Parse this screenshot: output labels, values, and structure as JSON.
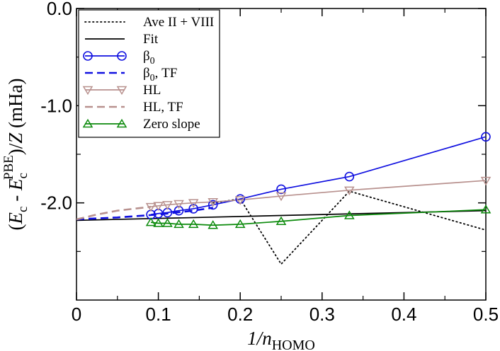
{
  "chart_data": {
    "type": "line",
    "title": "",
    "xlabel": {
      "prefix": "1/",
      "var": "n",
      "sub": "HOMO"
    },
    "ylabel": {
      "open": "(",
      "e1": "E",
      "e1_sub": "c",
      "minus": " - ",
      "e2": "E",
      "e2_sub": "c",
      "e2_sup": "PBE",
      "close": ")/",
      "z": "Z",
      "unit": " (mHa)"
    },
    "xlim": [
      0,
      0.5
    ],
    "ylim": [
      -3.0,
      0.0
    ],
    "x_ticks": [
      0,
      0.1,
      0.2,
      0.3,
      0.4,
      0.5
    ],
    "x_tick_labels": [
      "0",
      "0.1",
      "0.2",
      "0.3",
      "0.4",
      "0.5"
    ],
    "y_ticks": [
      0.0,
      -1.0,
      -2.0
    ],
    "y_tick_labels": [
      "0.0",
      "-1.0",
      "-2.0"
    ],
    "grid": false,
    "legend_position": "top-left",
    "series": [
      {
        "name": "Ave II + VIII",
        "color": "#000000",
        "dash": "dotted",
        "marker": "none",
        "x": [
          0.1667,
          0.2,
          0.25,
          0.3333,
          0.5
        ],
        "y": [
          -2.0,
          -1.96,
          -2.63,
          -1.88,
          -2.28
        ]
      },
      {
        "name": "Fit",
        "color": "#000000",
        "dash": "solid",
        "marker": "none",
        "x": [
          0,
          0.5
        ],
        "y": [
          -2.18,
          -2.08
        ]
      },
      {
        "name": "β0",
        "label_main": "β",
        "label_sub": "0",
        "label_tail": "",
        "color": "#1010e0",
        "dash": "solid",
        "marker": "circle",
        "x": [
          0.0909,
          0.1,
          0.1111,
          0.125,
          0.1429,
          0.1667,
          0.2,
          0.25,
          0.3333,
          0.5
        ],
        "y": [
          -2.12,
          -2.11,
          -2.1,
          -2.08,
          -2.06,
          -2.02,
          -1.96,
          -1.86,
          -1.73,
          -1.32
        ]
      },
      {
        "name": "β0, TF",
        "label_main": "β",
        "label_sub": "0",
        "label_tail": ", TF",
        "color": "#1010e0",
        "dash": "dashed",
        "marker": "none",
        "x": [
          0,
          0.05,
          0.1,
          0.1429,
          0.1667
        ],
        "y": [
          -2.17,
          -2.15,
          -2.12,
          -2.08,
          -2.05
        ]
      },
      {
        "name": "HL",
        "color": "#b8918e",
        "dash": "solid",
        "marker": "triangle-down",
        "x": [
          0.0909,
          0.1,
          0.1111,
          0.125,
          0.1429,
          0.1667,
          0.2,
          0.25,
          0.3333,
          0.5
        ],
        "y": [
          -2.04,
          -2.03,
          -2.02,
          -2.01,
          -2.0,
          -1.99,
          -1.97,
          -1.93,
          -1.87,
          -1.77
        ]
      },
      {
        "name": "HL, TF",
        "color": "#b8918e",
        "dash": "dashed",
        "marker": "none",
        "x": [
          0,
          0.025,
          0.05,
          0.0909
        ],
        "y": [
          -2.17,
          -2.12,
          -2.08,
          -2.04
        ]
      },
      {
        "name": "Zero slope",
        "color": "#0b8a0b",
        "dash": "solid",
        "marker": "triangle-up",
        "x": [
          0.0909,
          0.1,
          0.1111,
          0.125,
          0.1429,
          0.1667,
          0.2,
          0.25,
          0.3333,
          0.5
        ],
        "y": [
          -2.2,
          -2.21,
          -2.21,
          -2.22,
          -2.22,
          -2.23,
          -2.22,
          -2.19,
          -2.13,
          -2.07
        ]
      }
    ]
  }
}
